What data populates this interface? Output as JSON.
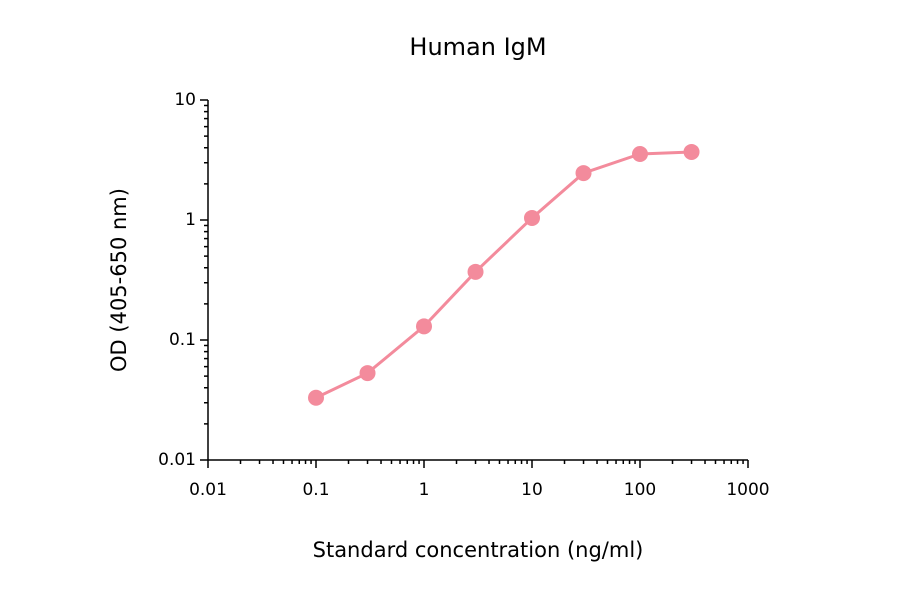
{
  "chart_data": {
    "type": "line",
    "title": "Human IgM",
    "x_label": "Standard concentration (ng/ml)",
    "y_label": "OD (405-650 nm)",
    "x": [
      0.1,
      0.3,
      1,
      3,
      10,
      30,
      100,
      300
    ],
    "series": [
      {
        "name": "Human IgM",
        "color": "#f38b9c",
        "values": [
          0.033,
          0.053,
          0.13,
          0.37,
          1.04,
          2.46,
          3.55,
          3.69
        ]
      }
    ],
    "xscale": "log",
    "yscale": "log",
    "xlim": [
      0.01,
      1000
    ],
    "xticks": [
      0.01,
      0.1,
      1,
      10,
      100,
      1000
    ],
    "ylim": [
      0.01,
      10
    ],
    "yticks": [
      0.01,
      0.1,
      1,
      10
    ],
    "grid": false
  }
}
